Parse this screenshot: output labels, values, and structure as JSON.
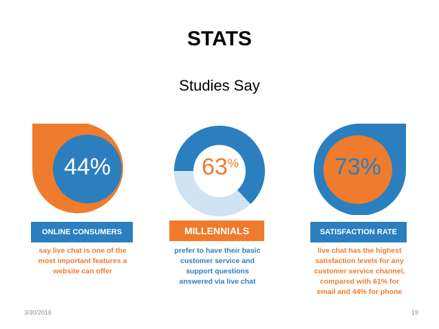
{
  "slide": {
    "title": "STATS",
    "subtitle": "Studies Say",
    "date": "3/30/2016",
    "page_number": "19"
  },
  "colors": {
    "orange": "#ef7b2c",
    "blue": "#2b7fbf",
    "light_blue": "#cfe3f2"
  },
  "stats": [
    {
      "percent": "44%",
      "label": "ONLINE CONSUMERS",
      "caption": [
        "say live chat is one of the",
        "most important features a",
        "website can offer"
      ]
    },
    {
      "percent": "63",
      "percent_suffix": "%",
      "fill_fraction": 0.63,
      "label": "MILLENNIALS",
      "caption": [
        "prefer to have their basic",
        "customer service and",
        "support questions",
        "answered via live chat"
      ]
    },
    {
      "percent": "73%",
      "label": "SATISFACTION RATE",
      "caption": [
        "live chat has the highest",
        "satisfaction levels for any",
        "customer service channel,",
        "compared with 61% for",
        "email and 44% for phone"
      ]
    }
  ]
}
